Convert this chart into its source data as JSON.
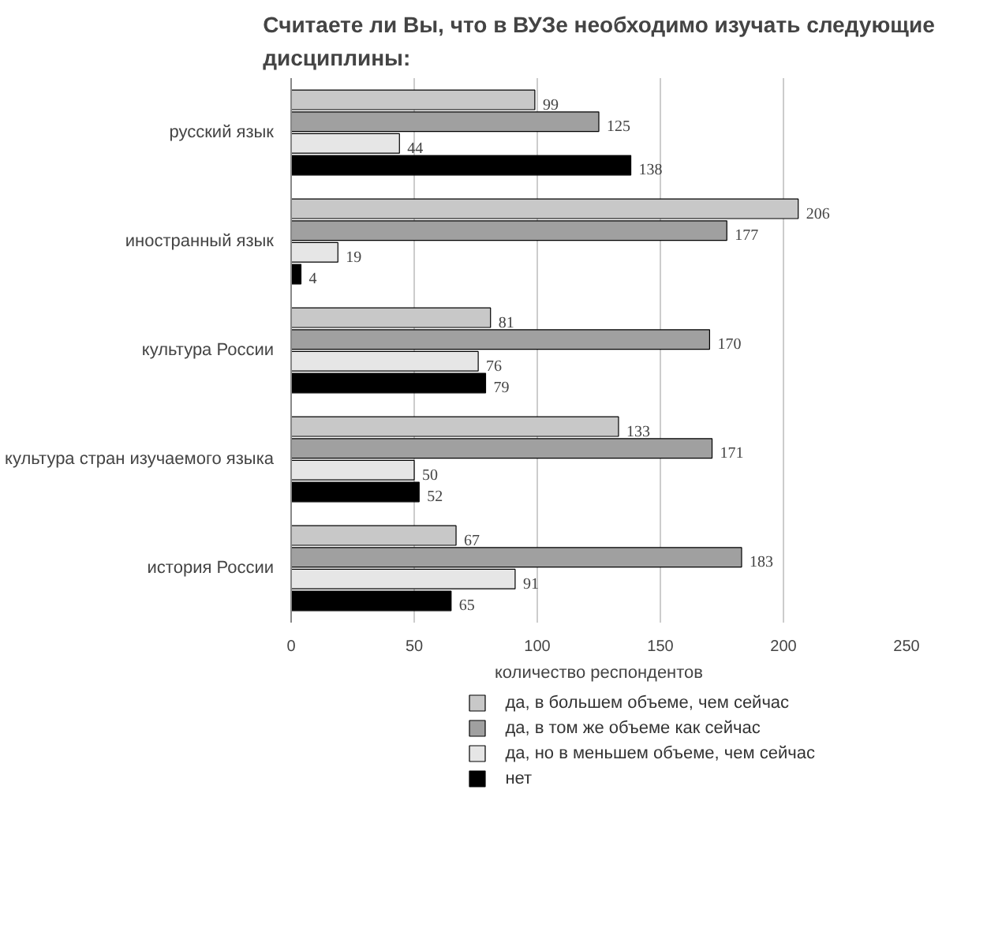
{
  "chart_data": {
    "type": "bar",
    "orientation": "horizontal",
    "title": "Считаете ли Вы, что в ВУЗе необходимо изучать следующие дисциплины:",
    "xlabel": "количество респондентов",
    "categories": [
      "русский язык",
      "иностранный язык",
      "культура России",
      "культура стран изучаемого языка",
      "история России"
    ],
    "series": [
      {
        "name": "да, в большем объеме, чем сейчас",
        "color": "#c8c8c8",
        "values": [
          99,
          206,
          81,
          133,
          67
        ]
      },
      {
        "name": "да, в том же объеме как сейчас",
        "color": "#a0a0a0",
        "values": [
          125,
          177,
          170,
          171,
          183
        ]
      },
      {
        "name": "да, но в меньшем объеме, чем сейчас",
        "color": "#e6e6e6",
        "values": [
          44,
          19,
          76,
          50,
          91
        ]
      },
      {
        "name": "нет",
        "color": "#000000",
        "values": [
          138,
          4,
          79,
          52,
          65
        ]
      }
    ],
    "xlim": [
      0,
      250
    ],
    "xticks": [
      0,
      50,
      100,
      150,
      200,
      250
    ],
    "grid": "x",
    "legend": "bottom",
    "data_labels": true
  }
}
